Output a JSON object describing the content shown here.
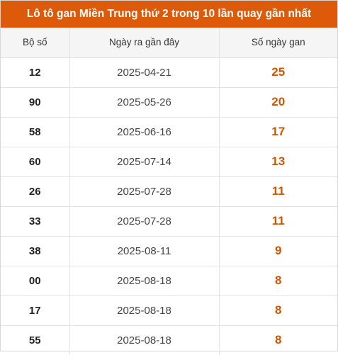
{
  "title": "Lô tô gan Miền Trung thứ 2 trong 10 lần quay gần nhất",
  "colors": {
    "title_bg": "#dd5a0b",
    "gan_value": "#d35400",
    "header_bg": "#f5f5f5"
  },
  "columns": [
    "Bộ số",
    "Ngày ra gần đây",
    "Số ngày gan"
  ],
  "rows": [
    {
      "number": "12",
      "date": "2025-04-21",
      "days": "25"
    },
    {
      "number": "90",
      "date": "2025-05-26",
      "days": "20"
    },
    {
      "number": "58",
      "date": "2025-06-16",
      "days": "17"
    },
    {
      "number": "60",
      "date": "2025-07-14",
      "days": "13"
    },
    {
      "number": "26",
      "date": "2025-07-28",
      "days": "11"
    },
    {
      "number": "33",
      "date": "2025-07-28",
      "days": "11"
    },
    {
      "number": "38",
      "date": "2025-08-11",
      "days": "9"
    },
    {
      "number": "00",
      "date": "2025-08-18",
      "days": "8"
    },
    {
      "number": "17",
      "date": "2025-08-18",
      "days": "8"
    },
    {
      "number": "55",
      "date": "2025-08-18",
      "days": "8"
    }
  ]
}
